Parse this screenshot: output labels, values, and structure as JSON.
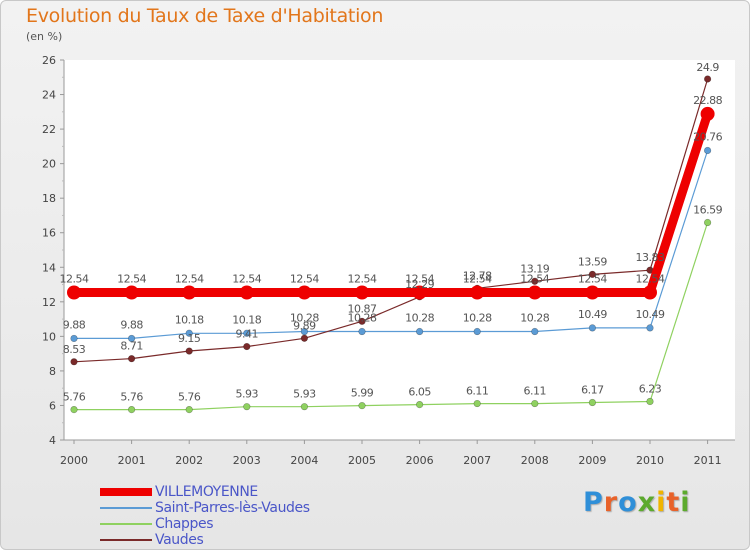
{
  "header": {
    "title": "Evolution du Taux de Taxe d'Habitation",
    "subtitle": "(en %)"
  },
  "logo": {
    "text": "Proxiti"
  },
  "chart_data": {
    "type": "line",
    "title": "Evolution du Taux de Taxe d'Habitation",
    "ylabel": "(en %)",
    "xlabel": "",
    "x": [
      "2000",
      "2001",
      "2002",
      "2003",
      "2004",
      "2005",
      "2006",
      "2007",
      "2008",
      "2009",
      "2010",
      "2011"
    ],
    "ylim": [
      4,
      26
    ],
    "yticks": [
      "4",
      "6",
      "8",
      "10",
      "12",
      "14",
      "16",
      "18",
      "20",
      "22",
      "24",
      "26"
    ],
    "grid": false,
    "legend": "bottom-left",
    "series": [
      {
        "name": "VILLEMOYENNE",
        "color": "#ee0000",
        "values": [
          12.54,
          12.54,
          12.54,
          12.54,
          12.54,
          12.54,
          12.54,
          12.54,
          12.54,
          12.54,
          12.54,
          22.88
        ],
        "labels": [
          "12.54",
          "12.54",
          "12.54",
          "12.54",
          "12.54",
          "12.54",
          "12.54",
          "12.54",
          "12.54",
          "12.54",
          "12.54",
          "22.88"
        ]
      },
      {
        "name": "Saint-Parres-lès-Vaudes",
        "color": "#5b9bd5",
        "values": [
          9.88,
          9.88,
          10.18,
          10.18,
          10.28,
          10.28,
          10.28,
          10.28,
          10.28,
          10.49,
          10.49,
          20.76
        ],
        "labels": [
          "9.88",
          "9.88",
          "10.18",
          "10.18",
          "10.28",
          "10.28",
          "10.28",
          "10.28",
          "10.28",
          "10.49",
          "10.49",
          "20.76"
        ]
      },
      {
        "name": "Chappes",
        "color": "#8fd160",
        "values": [
          5.76,
          5.76,
          5.76,
          5.93,
          5.93,
          5.99,
          6.05,
          6.11,
          6.11,
          6.17,
          6.23,
          16.59
        ],
        "labels": [
          "5.76",
          "5.76",
          "5.76",
          "5.93",
          "5.93",
          "5.99",
          "6.05",
          "6.11",
          "6.11",
          "6.17",
          "6.23",
          "16.59"
        ]
      },
      {
        "name": "Vaudes",
        "color": "#7a2a2a",
        "values": [
          8.53,
          8.71,
          9.15,
          9.41,
          9.89,
          10.87,
          12.29,
          12.78,
          13.19,
          13.59,
          13.83,
          24.9
        ],
        "labels": [
          "8.53",
          "8.71",
          "9.15",
          "9.41",
          "9.89",
          "10.87",
          "12.29",
          "12.78",
          "13.19",
          "13.59",
          "13.83",
          "24.9"
        ]
      }
    ]
  }
}
